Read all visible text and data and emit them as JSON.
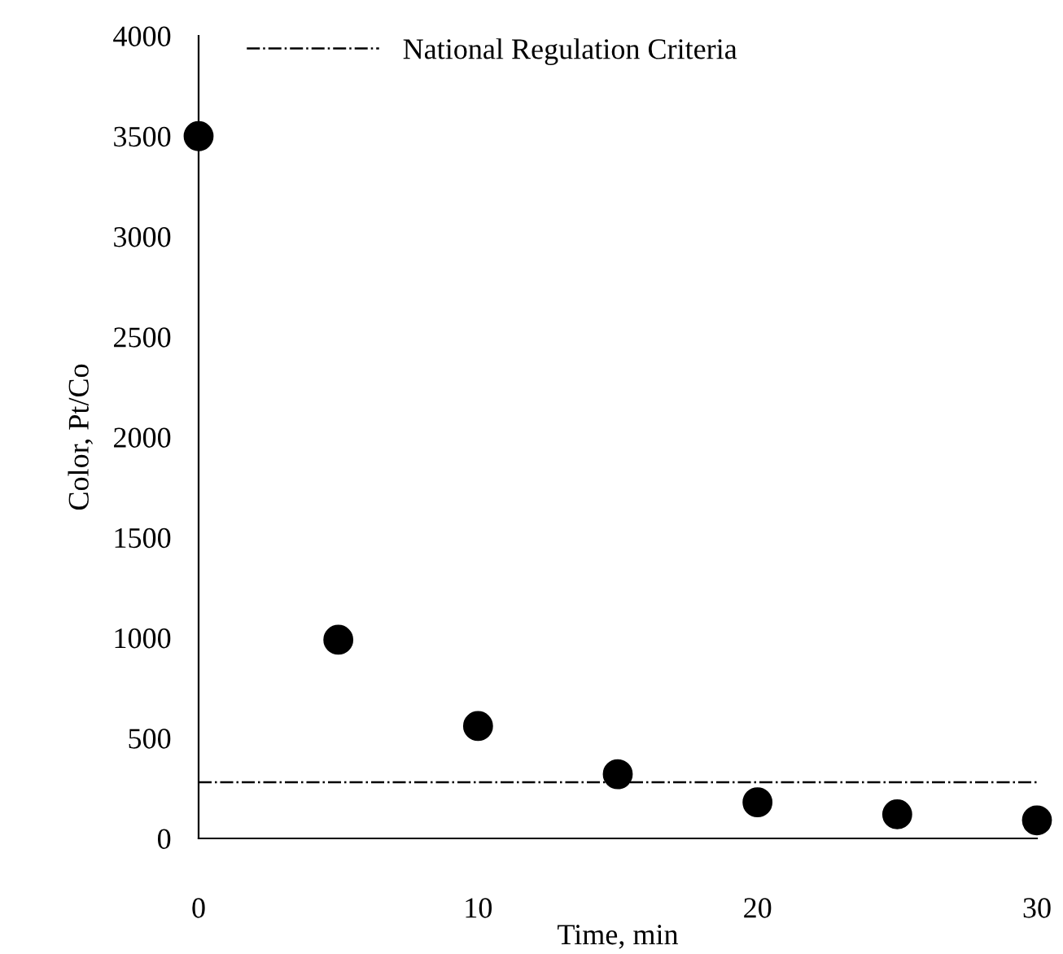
{
  "chart_data": {
    "type": "scatter",
    "xlabel": "Time, min",
    "ylabel": "Color, Pt/Co",
    "x": [
      0,
      5,
      10,
      15,
      20,
      25,
      30
    ],
    "series": [
      {
        "color": "#000000",
        "values": [
          3500,
          990,
          560,
          320,
          180,
          120,
          90
        ]
      }
    ],
    "xlim": [
      0,
      30
    ],
    "xticks": [
      0,
      10,
      20,
      30
    ],
    "ylim": [
      0,
      4000
    ],
    "yticks": [
      0,
      500,
      1000,
      1500,
      2000,
      2500,
      3000,
      3500,
      4000
    ],
    "ref_lines": [
      {
        "axis": "y",
        "value": 280,
        "label": "National Regulation Criteria",
        "color": "#000000",
        "line_style": "dashdot"
      }
    ],
    "marker": "circle",
    "grid": false,
    "legend": "top"
  }
}
